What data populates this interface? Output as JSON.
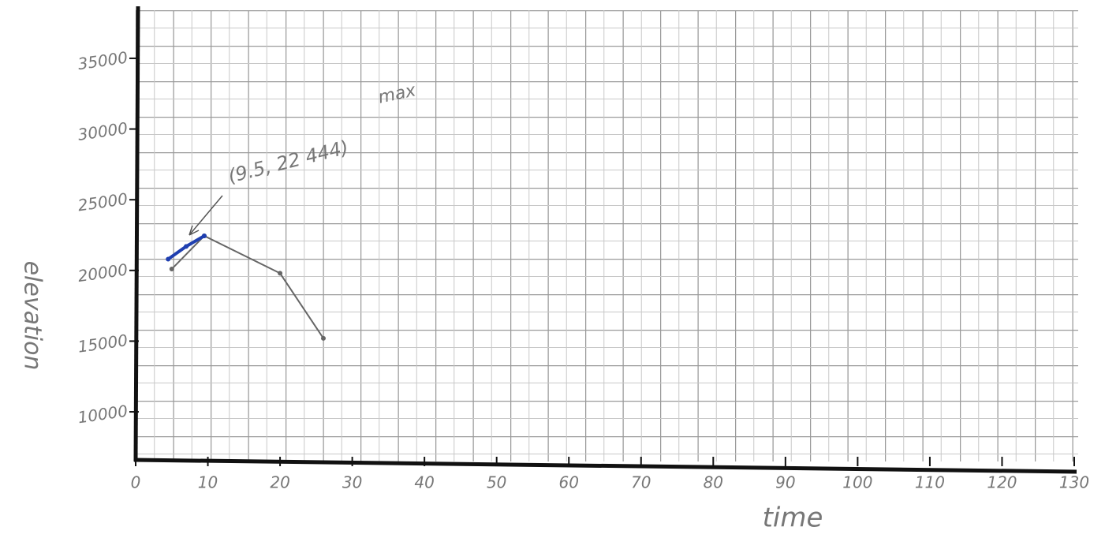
{
  "chart_data": {
    "type": "line",
    "x_label": "time",
    "y_label": "elevation",
    "annotations": [
      "(9.5, 22 444)",
      "max"
    ],
    "xlim": [
      0,
      130
    ],
    "xticks": [
      0,
      10,
      20,
      30,
      40,
      50,
      60,
      70,
      80,
      90,
      100,
      110,
      120,
      130
    ],
    "ylim": [
      6600,
      38400
    ],
    "yticks": [
      10000,
      15000,
      20000,
      25000,
      30000,
      35000
    ],
    "series": [
      {
        "color": "#666666",
        "x": [
          5,
          9.5,
          20,
          26
        ],
        "values": [
          20100,
          22444,
          19800,
          15200
        ]
      },
      {
        "color": "#1f3fb0",
        "x": [
          4.5,
          7,
          9.5
        ],
        "values": [
          20800,
          21700,
          22444
        ]
      }
    ]
  }
}
